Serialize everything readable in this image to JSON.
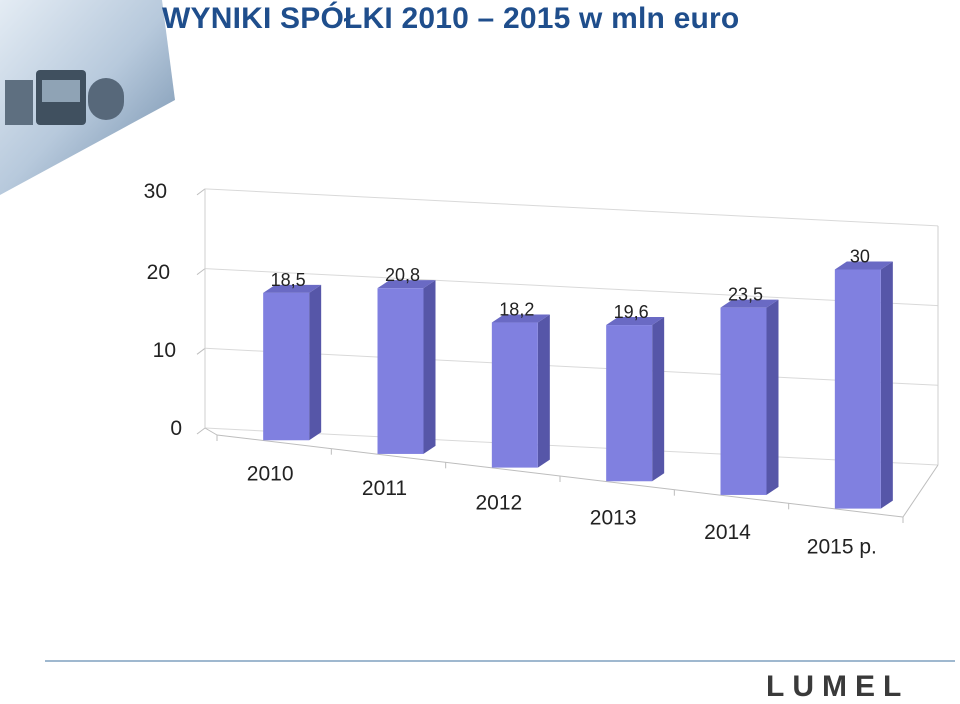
{
  "header": {
    "title": "WYNIKI SPÓŁKI 2010 – 2015 w mln euro"
  },
  "logo": {
    "text": "LUMEL"
  },
  "chart_data": {
    "type": "bar",
    "categories": [
      "2010",
      "2011",
      "2012",
      "2013",
      "2014",
      "2015 p."
    ],
    "values": [
      18.5,
      20.8,
      18.2,
      19.6,
      23.5,
      30
    ],
    "data_labels": [
      "18,5",
      "20,8",
      "18,2",
      "19,6",
      "23,5",
      "30"
    ],
    "yticks": [
      "0",
      "10",
      "20",
      "30"
    ],
    "ylim": [
      0,
      30
    ],
    "grid": true,
    "bar_color": "#8080e0",
    "xlabel": "",
    "ylabel": ""
  }
}
